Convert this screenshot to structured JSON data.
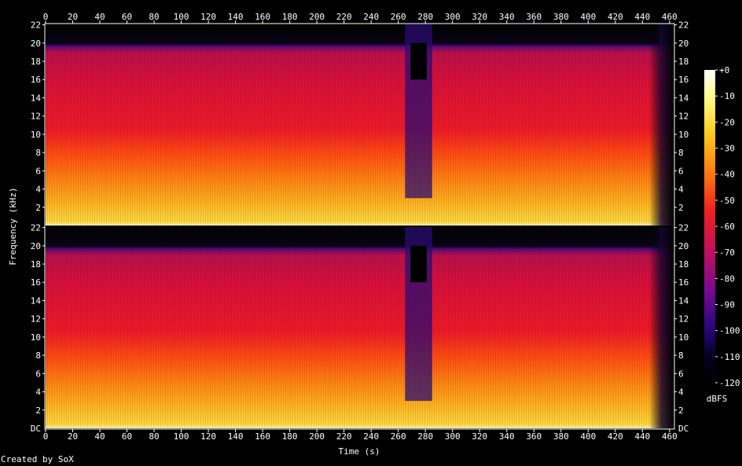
{
  "credit": "Created by SoX",
  "chart_data": {
    "type": "heatmap",
    "title": "",
    "xlabel": "Time (s)",
    "ylabel": "Frequency (kHz)",
    "xlim": [
      0,
      463
    ],
    "ylim": [
      0,
      22.05
    ],
    "x_ticks": [
      0,
      20,
      40,
      60,
      80,
      100,
      120,
      140,
      160,
      180,
      200,
      220,
      240,
      260,
      280,
      300,
      320,
      340,
      360,
      380,
      400,
      420,
      440,
      460
    ],
    "y_ticks": [
      2,
      4,
      6,
      8,
      10,
      12,
      14,
      16,
      18,
      20,
      22
    ],
    "y_zero_label": "DC",
    "channels": 2,
    "colorbar": {
      "label": "dBFS",
      "range": [
        -120,
        0
      ],
      "ticks": [
        "+0",
        "-10",
        "-20",
        "-30",
        "-40",
        "-50",
        "-60",
        "-70",
        "-80",
        "-90",
        "-100",
        "-110",
        "-120"
      ]
    },
    "cutoff_khz": 20,
    "quiet_section_s": [
      265,
      285
    ],
    "fade_out_s": [
      445,
      463
    ]
  }
}
